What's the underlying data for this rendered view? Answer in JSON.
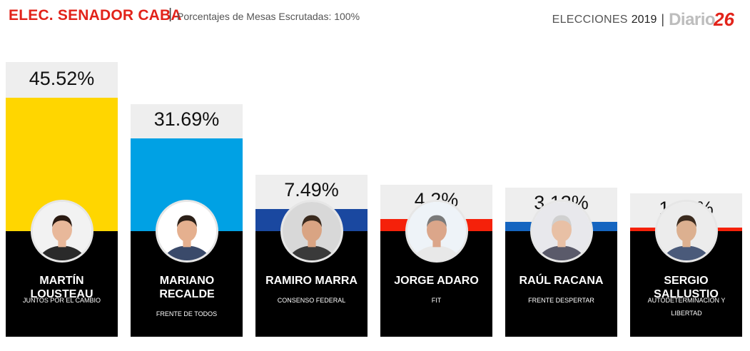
{
  "header": {
    "title": "ELEC. SENADOR CABA",
    "separator": "|",
    "subtitle": "Porcentajes de Mesas Escrutadas: 100%",
    "elections_label": "ELECCIONES",
    "year": "2019",
    "pipe": "|",
    "logo_word": "Diario",
    "logo_num": "26"
  },
  "chart_data": {
    "type": "bar",
    "title": "ELEC. SENADOR CABA",
    "subtitle": "Porcentajes de Mesas Escrutadas: 100%",
    "ylim": [
      0,
      45.52
    ],
    "categories": [
      "MARTÍN LOUSTEAU",
      "MARIANO RECALDE",
      "RAMIRO MARRA",
      "JORGE ADARO",
      "RAÚL RACANA",
      "SERGIO SALLUSTIO"
    ],
    "values": [
      45.52,
      31.69,
      7.49,
      4.2,
      3.13,
      1.27
    ],
    "labels": [
      "45.52%",
      "31.69%",
      "7.49%",
      "4.2%",
      "3.13%",
      "1.27%"
    ],
    "candidates": [
      {
        "name": "MARTÍN LOUSTEAU",
        "party": "JUNTOS POR EL CAMBIO",
        "value": 45.52,
        "label": "45.52%",
        "color": "#ffd600"
      },
      {
        "name": "MARIANO RECALDE",
        "party": "FRENTE DE TODOS",
        "value": 31.69,
        "label": "31.69%",
        "color": "#00a1e4"
      },
      {
        "name": "RAMIRO MARRA",
        "party": "CONSENSO FEDERAL",
        "value": 7.49,
        "label": "7.49%",
        "color": "#1a48a0"
      },
      {
        "name": "JORGE ADARO",
        "party": "FIT",
        "value": 4.2,
        "label": "4.2%",
        "color": "#f5210a"
      },
      {
        "name": "RAÚL RACANA",
        "party": "FRENTE DESPERTAR",
        "value": 3.13,
        "label": "3.13%",
        "color": "#1565c0"
      },
      {
        "name": "SERGIO SALLUSTIO",
        "party": "AUTODETERMINACIÓN Y LIBERTAD",
        "value": 1.27,
        "label": "1.27%",
        "color": "#f5210a"
      }
    ],
    "grid": false,
    "legend": "none"
  }
}
